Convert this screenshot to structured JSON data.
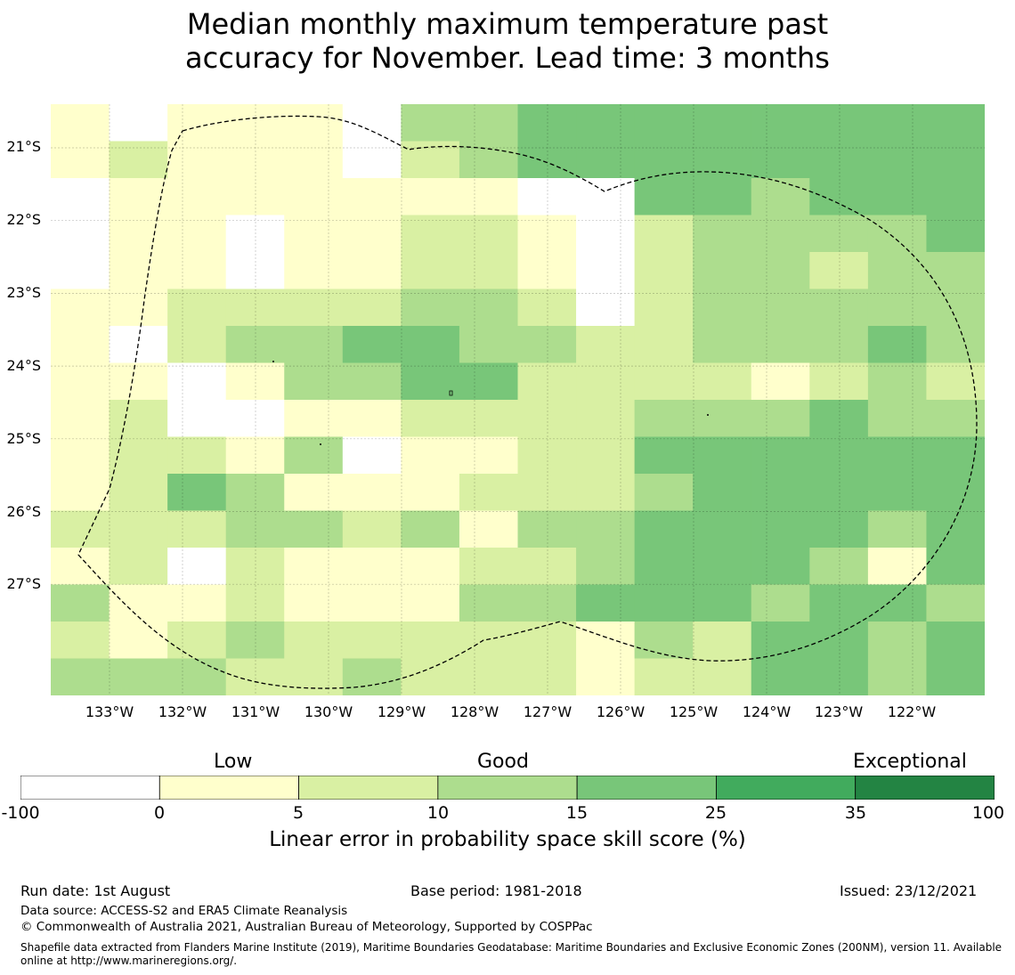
{
  "title_line1": "Median monthly maximum temperature past",
  "title_line2": "accuracy for November. Lead time: 3 months",
  "map": {
    "lat_labels": [
      "21°S",
      "22°S",
      "23°S",
      "24°S",
      "25°S",
      "26°S",
      "27°S"
    ],
    "lon_labels": [
      "133°W",
      "132°W",
      "131°W",
      "130°W",
      "129°W",
      "128°W",
      "127°W",
      "126°W",
      "125°W",
      "124°W",
      "123°W",
      "122°W"
    ],
    "grid_lines": true,
    "boundary_line": "dashed",
    "category_colors": [
      "#ffffff",
      "#ffffcc",
      "#d9f0a3",
      "#addd8e",
      "#78c679",
      "#41ab5d",
      "#238443"
    ],
    "cells": [
      [
        1,
        0,
        1,
        1,
        1,
        0,
        3,
        3,
        4,
        4,
        4,
        4,
        4,
        4,
        4,
        4
      ],
      [
        1,
        2,
        1,
        1,
        1,
        0,
        2,
        3,
        4,
        4,
        4,
        4,
        4,
        4,
        4,
        4
      ],
      [
        0,
        1,
        1,
        1,
        1,
        1,
        1,
        1,
        0,
        0,
        4,
        4,
        3,
        4,
        4,
        4
      ],
      [
        0,
        1,
        1,
        0,
        1,
        1,
        2,
        2,
        1,
        0,
        2,
        3,
        3,
        3,
        3,
        4
      ],
      [
        0,
        1,
        1,
        0,
        1,
        1,
        2,
        2,
        1,
        0,
        2,
        3,
        3,
        2,
        3,
        3
      ],
      [
        1,
        1,
        2,
        2,
        2,
        2,
        3,
        3,
        2,
        0,
        2,
        3,
        3,
        3,
        3,
        3
      ],
      [
        1,
        0,
        2,
        3,
        3,
        4,
        4,
        3,
        3,
        2,
        2,
        3,
        3,
        3,
        4,
        3
      ],
      [
        1,
        1,
        0,
        1,
        3,
        3,
        4,
        4,
        2,
        2,
        2,
        2,
        1,
        2,
        3,
        2
      ],
      [
        1,
        2,
        0,
        0,
        1,
        1,
        2,
        2,
        2,
        2,
        3,
        3,
        3,
        4,
        3,
        3
      ],
      [
        1,
        2,
        2,
        1,
        3,
        0,
        1,
        1,
        2,
        2,
        4,
        4,
        4,
        4,
        4,
        4
      ],
      [
        1,
        2,
        4,
        3,
        1,
        1,
        1,
        2,
        2,
        2,
        3,
        4,
        4,
        4,
        4,
        4
      ],
      [
        2,
        2,
        2,
        3,
        3,
        2,
        3,
        1,
        3,
        3,
        4,
        4,
        4,
        4,
        3,
        4
      ],
      [
        1,
        2,
        0,
        2,
        1,
        1,
        1,
        2,
        2,
        3,
        4,
        4,
        4,
        3,
        1,
        4
      ],
      [
        3,
        1,
        1,
        2,
        1,
        1,
        1,
        3,
        3,
        4,
        4,
        4,
        3,
        4,
        4,
        3
      ],
      [
        2,
        1,
        2,
        3,
        2,
        2,
        2,
        2,
        2,
        1,
        3,
        2,
        4,
        4,
        3,
        4
      ],
      [
        3,
        3,
        3,
        2,
        2,
        3,
        2,
        2,
        2,
        1,
        2,
        2,
        4,
        4,
        3,
        4
      ]
    ]
  },
  "colorbar": {
    "category_labels": [
      "Low",
      "Good",
      "Exceptional"
    ],
    "tick_labels": [
      "-100",
      "0",
      "5",
      "10",
      "15",
      "25",
      "35",
      "100"
    ],
    "colors": [
      "#ffffff",
      "#ffffcc",
      "#d9f0a3",
      "#addd8e",
      "#78c679",
      "#41ab5d",
      "#238443"
    ],
    "label": "Linear error in probability space skill score (%)"
  },
  "footer": {
    "run_date": "Run date: 1st August",
    "base_period": "Base period: 1981-2018",
    "issued": "Issued: 23/12/2021",
    "data_source": "Data source: ACCESS-S2 and ERA5 Climate Reanalysis",
    "copyright": "© Commonwealth of Australia 2021, Australian Bureau of Meteorology, Supported by COSPPac",
    "shapefile_note": "Shapefile data extracted from Flanders Marine Institute (2019), Maritime Boundaries Geodatabase: Maritime Boundaries and Exclusive Economic Zones (200NM), version 11. Available online at http://www.marineregions.org/."
  }
}
